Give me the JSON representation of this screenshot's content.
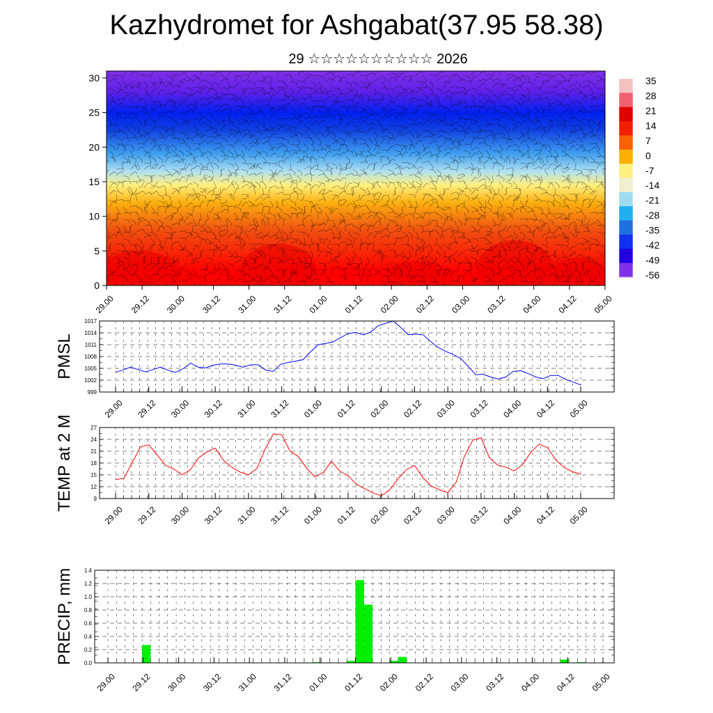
{
  "title": "Kazhydromet for Ashgabat(37.95 58.38)",
  "subtitle": "29 ☆☆☆☆☆☆☆☆☆☆ 2026",
  "time_labels": [
    "29.00",
    "29.12",
    "30.00",
    "30.12",
    "31.00",
    "31.12",
    "01.00",
    "01.12",
    "02.00",
    "02.12",
    "03.00",
    "03.12",
    "04.00",
    "04.12",
    "05.00"
  ],
  "chart_data": [
    {
      "type": "heatmap",
      "name": "cross-section",
      "y_ticks": [
        0,
        5,
        10,
        15,
        20,
        25,
        30
      ],
      "ylim": [
        0,
        31
      ],
      "colorbar": {
        "labels": [
          "35",
          "28",
          "21",
          "14",
          "7",
          "0",
          "-7",
          "-14",
          "-21",
          "-28",
          "-35",
          "-42",
          "-49",
          "-56"
        ],
        "colors": [
          "#f4c0c0",
          "#f06070",
          "#e00000",
          "#f02000",
          "#f86000",
          "#fbb000",
          "#fff080",
          "#f0f0d0",
          "#a0dcf0",
          "#20b0f0",
          "#2070e0",
          "#1030f0",
          "#2000e0",
          "#8030e8"
        ]
      },
      "isotherm_heights": [
        [
          "#ff0000",
          2
        ],
        [
          "#f05010",
          8
        ],
        [
          "#fbb010",
          12
        ],
        [
          "#fff080",
          14.5
        ],
        [
          "#b0e0f0",
          16.5
        ],
        [
          "#40a0f0",
          19
        ],
        [
          "#1040e0",
          22.5
        ],
        [
          "#0020f0",
          25
        ],
        [
          "#6020e8",
          28
        ],
        [
          "#8030e8",
          31
        ]
      ]
    },
    {
      "type": "line",
      "name": "PMSL",
      "ylabel": "PMSL",
      "ylim": [
        999,
        1017
      ],
      "y_ticks": [
        999,
        1002,
        1005,
        1008,
        1011,
        1014,
        1017
      ],
      "color": "#0000ff",
      "values": [
        1004,
        1004.6,
        1005.3,
        1004.7,
        1004.1,
        1004.7,
        1005.3,
        1004.5,
        1004,
        1004.9,
        1006.3,
        1005.3,
        1005.1,
        1005.8,
        1006.1,
        1006.1,
        1005.8,
        1005.3,
        1005.9,
        1005.9,
        1004.6,
        1004.2,
        1006,
        1006.5,
        1006.8,
        1007.2,
        1009.2,
        1011,
        1011.3,
        1011.7,
        1012.8,
        1013.8,
        1014.1,
        1013.5,
        1014.2,
        1015.8,
        1016.4,
        1017,
        1015.4,
        1013.5,
        1013.7,
        1013.5,
        1011.8,
        1010.3,
        1009.3,
        1008.5,
        1007.5,
        1005.5,
        1003.4,
        1003.5,
        1002.8,
        1002.3,
        1002.8,
        1004.2,
        1004.4,
        1003.7,
        1002.8,
        1002.4,
        1003.2,
        1003.2,
        1002.2,
        1001.5,
        1000.8
      ]
    },
    {
      "type": "line",
      "name": "TEMP at 2 M",
      "ylabel": "TEMP at 2 M",
      "ylim": [
        9,
        27
      ],
      "y_ticks": [
        9,
        12,
        15,
        18,
        21,
        24,
        27
      ],
      "color": "#ff0000",
      "values": [
        13.8,
        14.1,
        18.1,
        22.1,
        22.6,
        20.1,
        17.4,
        16.5,
        15,
        16.3,
        19.3,
        20.8,
        21.8,
        18.7,
        16.9,
        15.7,
        15,
        16.6,
        21.5,
        25.4,
        25.2,
        21,
        19.7,
        16.7,
        14.5,
        15.6,
        18.4,
        15.9,
        14.8,
        12.6,
        11.5,
        10.4,
        9.7,
        11.2,
        14,
        16.3,
        17.4,
        14.3,
        12.2,
        11.2,
        10.5,
        13.1,
        19.7,
        23.8,
        24.4,
        19.4,
        17.5,
        16.9,
        16,
        17.6,
        20.7,
        22.8,
        21.9,
        18.8,
        16.9,
        15.8,
        15.2
      ]
    },
    {
      "type": "bar",
      "name": "PRECIP, mm",
      "ylabel": "PRECIP, mm",
      "ylim": [
        0,
        1.4
      ],
      "y_ticks": [
        "0.0",
        "0.2",
        "0.4",
        "0.6",
        "0.8",
        "1.0",
        "1.2",
        "1.4"
      ],
      "color": "#00ee00",
      "bars": [
        {
          "index": 4,
          "value": 0.27
        },
        {
          "index": 24,
          "value": 0.01
        },
        {
          "index": 28,
          "value": 0.03
        },
        {
          "index": 29,
          "value": 1.25
        },
        {
          "index": 30,
          "value": 0.88
        },
        {
          "index": 33,
          "value": 0.03
        },
        {
          "index": 34,
          "value": 0.09
        },
        {
          "index": 53,
          "value": 0.05
        },
        {
          "index": 55,
          "value": 0.01
        }
      ],
      "bar_count": 58
    }
  ]
}
